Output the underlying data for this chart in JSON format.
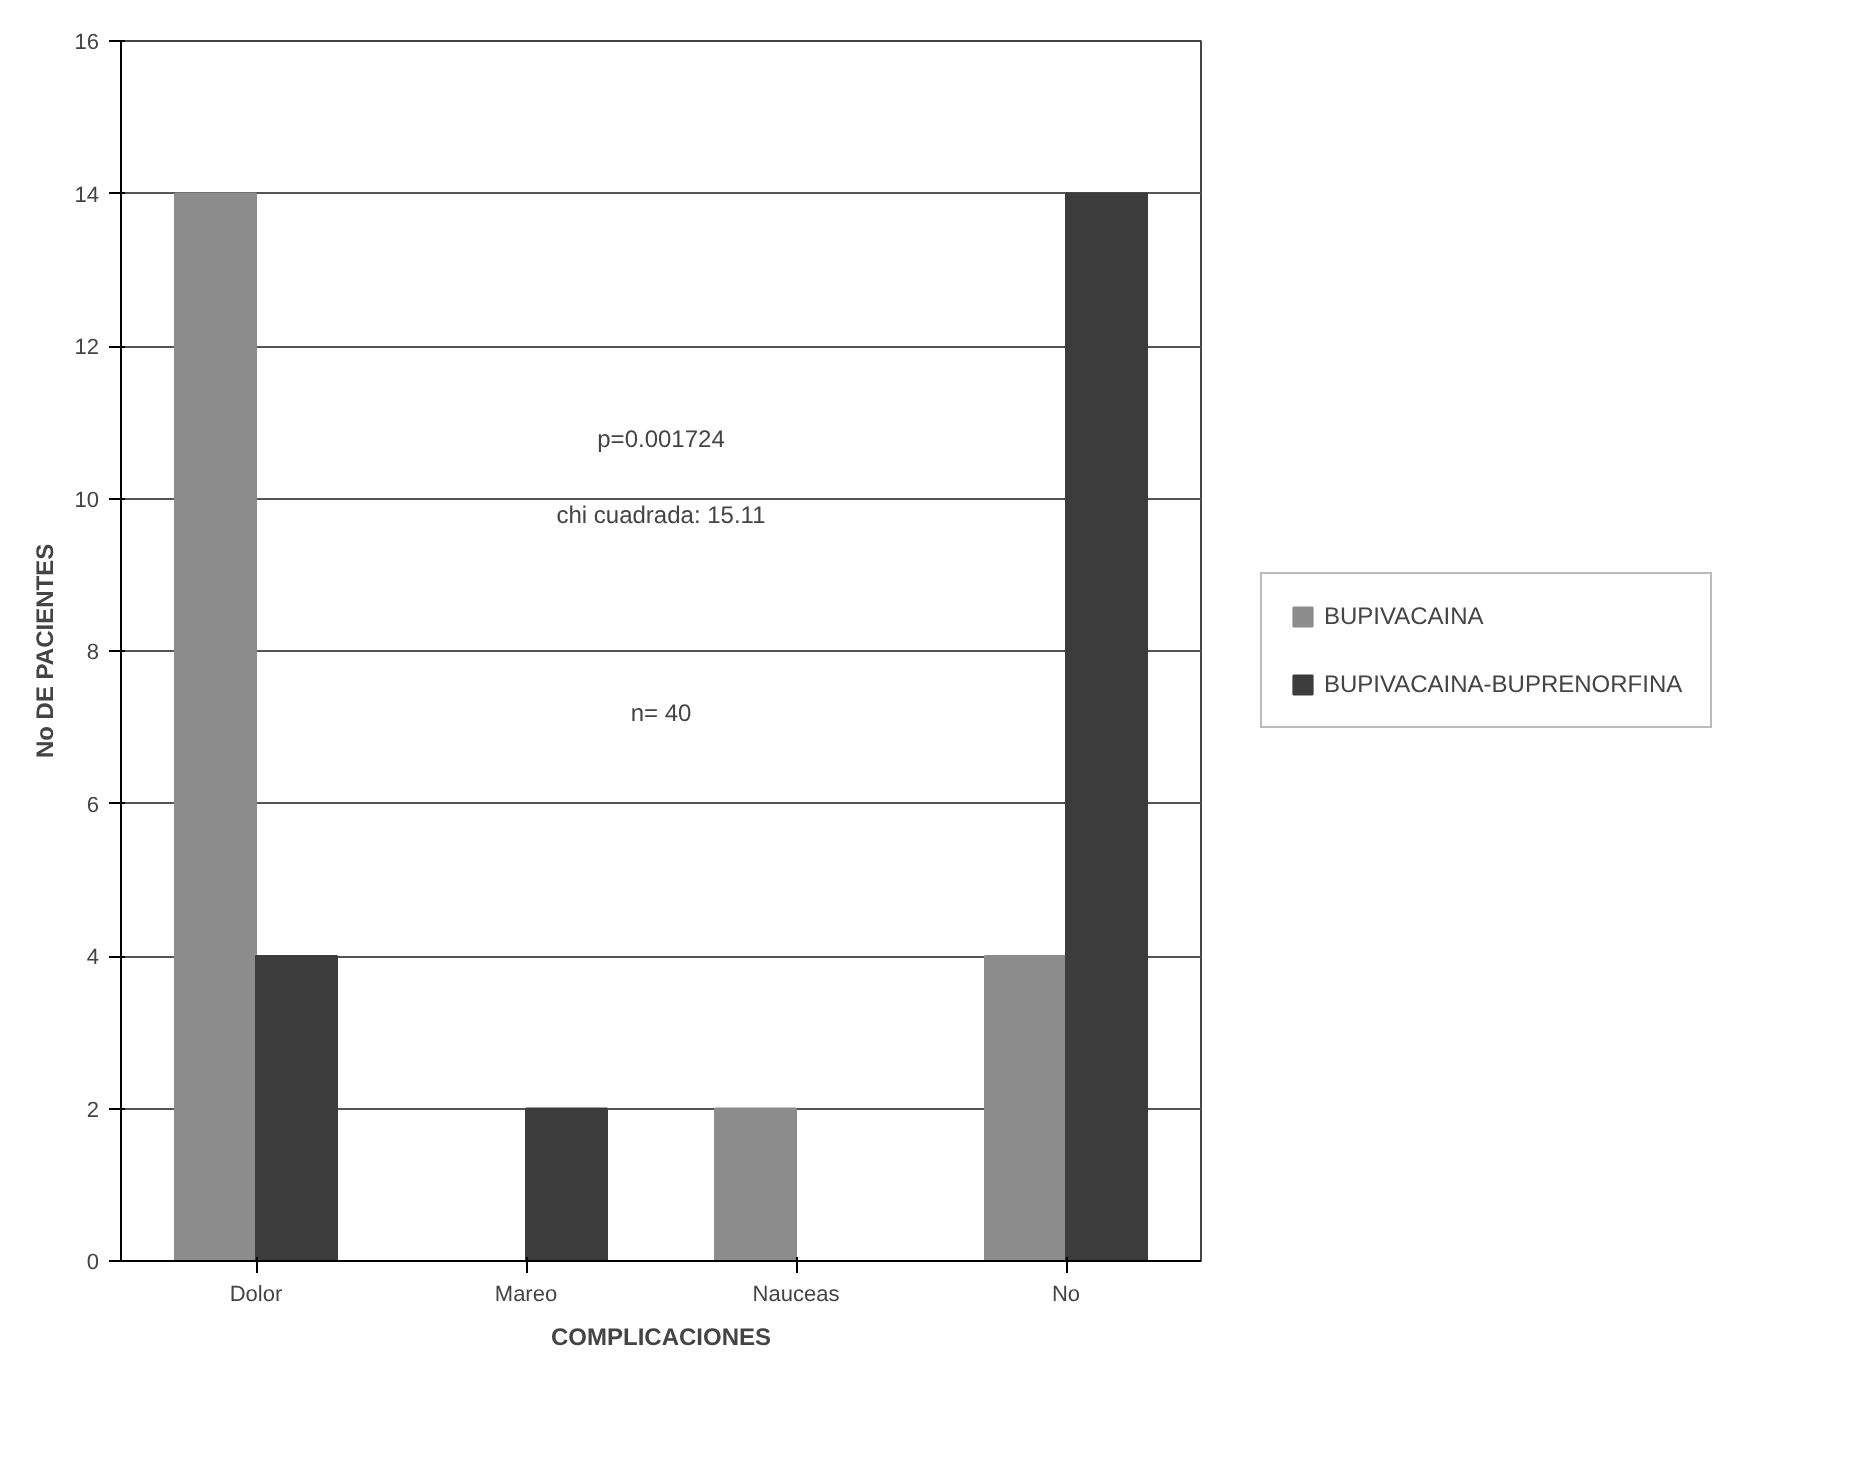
{
  "chart_data": {
    "type": "bar",
    "xlabel": "COMPLICACIONES",
    "ylabel": "No DE PACIENTES",
    "categories": [
      "Dolor",
      "Mareo",
      "Nauceas",
      "No"
    ],
    "series": [
      {
        "name": "BUPIVACAINA",
        "color": "#8c8c8c",
        "values": [
          14,
          0,
          2,
          4
        ]
      },
      {
        "name": "BUPIVACAINA-BUPRENORFINA",
        "color": "#3c3c3c",
        "values": [
          4,
          2,
          0,
          14
        ]
      }
    ],
    "ylim": [
      0,
      16
    ],
    "yticks": [
      0,
      2,
      4,
      6,
      8,
      10,
      12,
      14,
      16
    ],
    "grid": "y",
    "legend": "right",
    "annotations": [
      "p=0.001724",
      "chi cuadrada: 15.11",
      "n= 40"
    ]
  }
}
